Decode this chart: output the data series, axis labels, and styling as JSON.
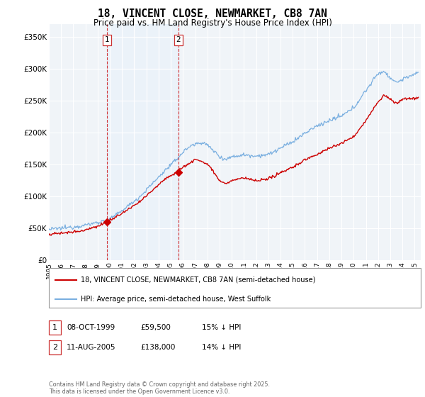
{
  "title": "18, VINCENT CLOSE, NEWMARKET, CB8 7AN",
  "subtitle": "Price paid vs. HM Land Registry's House Price Index (HPI)",
  "ylabel_ticks": [
    "£0",
    "£50K",
    "£100K",
    "£150K",
    "£200K",
    "£250K",
    "£300K",
    "£350K"
  ],
  "ytick_values": [
    0,
    50000,
    100000,
    150000,
    200000,
    250000,
    300000,
    350000
  ],
  "ylim": [
    0,
    370000
  ],
  "xlim_start": 1995.0,
  "xlim_end": 2025.5,
  "legend_line1": "18, VINCENT CLOSE, NEWMARKET, CB8 7AN (semi-detached house)",
  "legend_line2": "HPI: Average price, semi-detached house, West Suffolk",
  "annotation1_date": "08-OCT-1999",
  "annotation1_price": "£59,500",
  "annotation1_hpi": "15% ↓ HPI",
  "annotation2_date": "11-AUG-2005",
  "annotation2_price": "£138,000",
  "annotation2_hpi": "14% ↓ HPI",
  "footer": "Contains HM Land Registry data © Crown copyright and database right 2025.\nThis data is licensed under the Open Government Licence v3.0.",
  "red_color": "#cc0000",
  "blue_color": "#7aafe0",
  "shade_color": "#ddeeff",
  "background_color": "#f0f4f8",
  "purchase1_x": 1999.78,
  "purchase1_y": 59500,
  "purchase2_x": 2005.62,
  "purchase2_y": 138000
}
